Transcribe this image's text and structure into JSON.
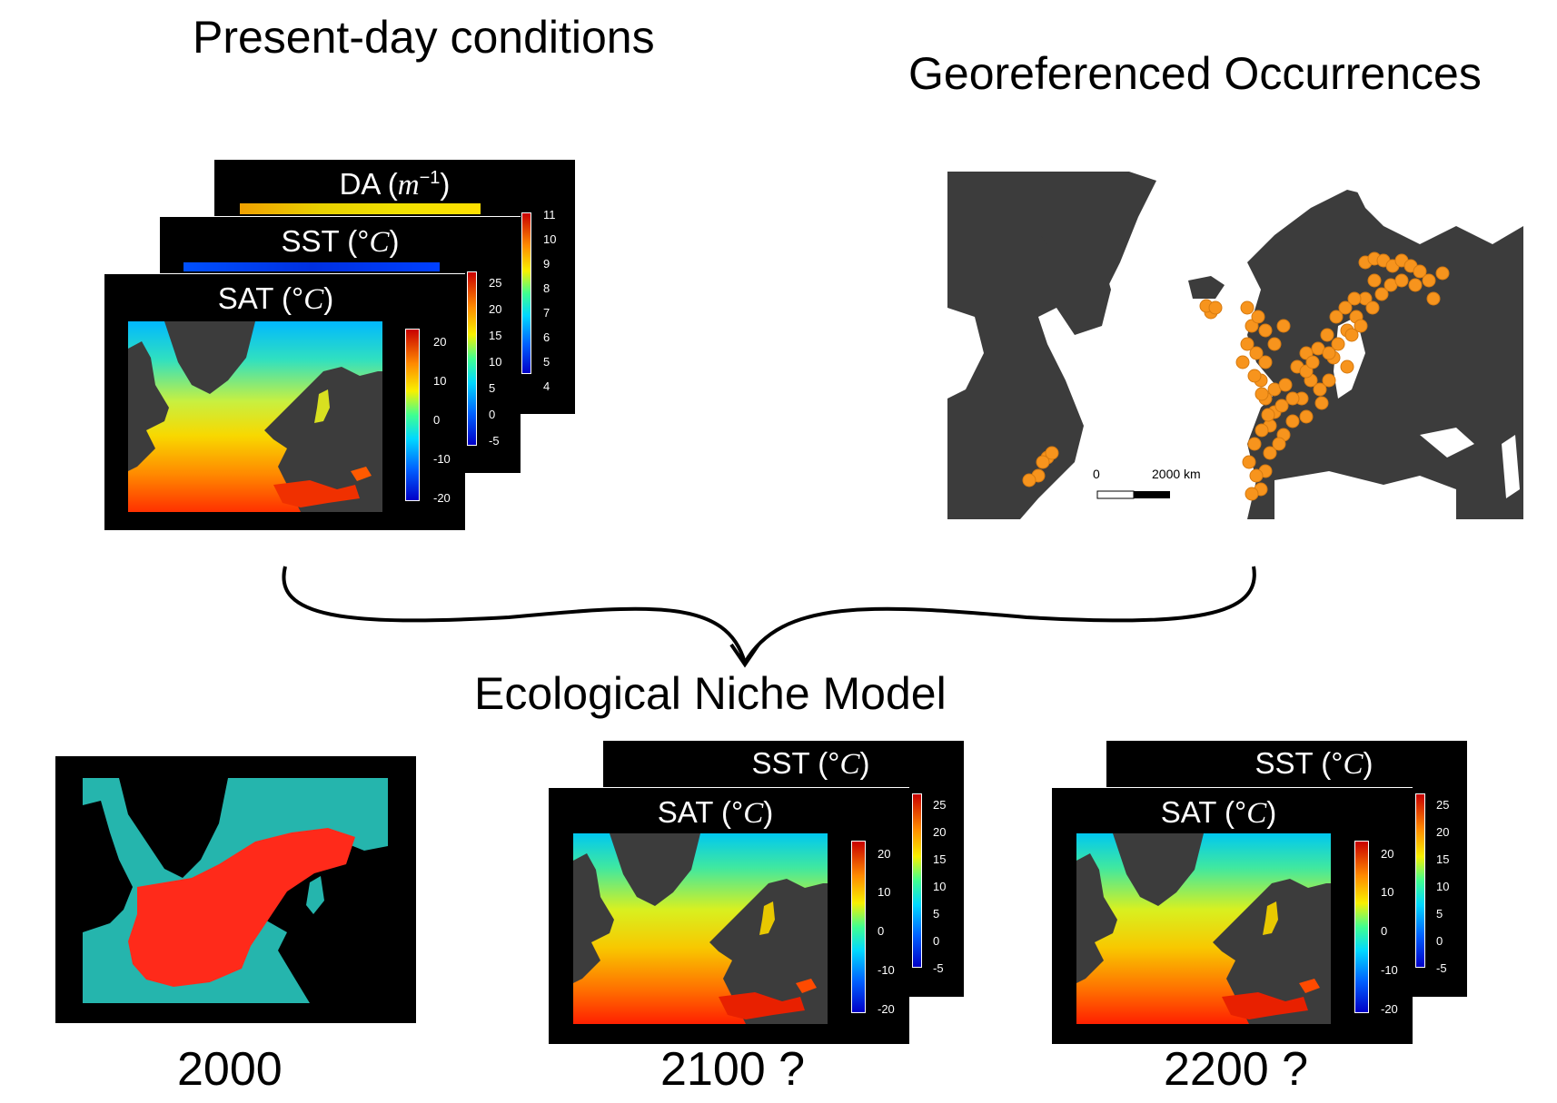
{
  "headings": {
    "present": "Present-day conditions",
    "occurrences": "Georeferenced Occurrences",
    "model": "Ecological Niche Model",
    "y2000": "2000",
    "y2100": "2100 ?",
    "y2200": "2200 ?"
  },
  "present_stack": {
    "da": {
      "title": "DA",
      "unit": "m",
      "exp": "−1",
      "ticks": [
        "11",
        "10",
        "9",
        "8",
        "7",
        "6",
        "5",
        "4"
      ]
    },
    "sst": {
      "title": "SST (°",
      "unit_italic": "C",
      "close": ")",
      "ticks": [
        "25",
        "20",
        "15",
        "10",
        "5",
        "0",
        "-5"
      ]
    },
    "sat": {
      "title": "SAT (°",
      "unit_italic": "C",
      "close": ")",
      "ticks": [
        "20",
        "10",
        "0",
        "-10",
        "-20"
      ]
    }
  },
  "future_stack": {
    "sst": {
      "title": "SST (°",
      "unit_italic": "C",
      "close": ")",
      "ticks": [
        "25",
        "20",
        "15",
        "10",
        "5",
        "0",
        "-5"
      ]
    },
    "sat": {
      "title": "SAT (°",
      "unit_italic": "C",
      "close": ")",
      "ticks": [
        "20",
        "10",
        "0",
        "-10",
        "-20"
      ]
    }
  },
  "scalebar": {
    "start": "0",
    "end": "2000 km"
  },
  "colors": {
    "land": "#3c3c3c",
    "occurrence": "#f7941d",
    "suitable": "#ff2a1a",
    "unsuitable": "#25b5ad"
  }
}
